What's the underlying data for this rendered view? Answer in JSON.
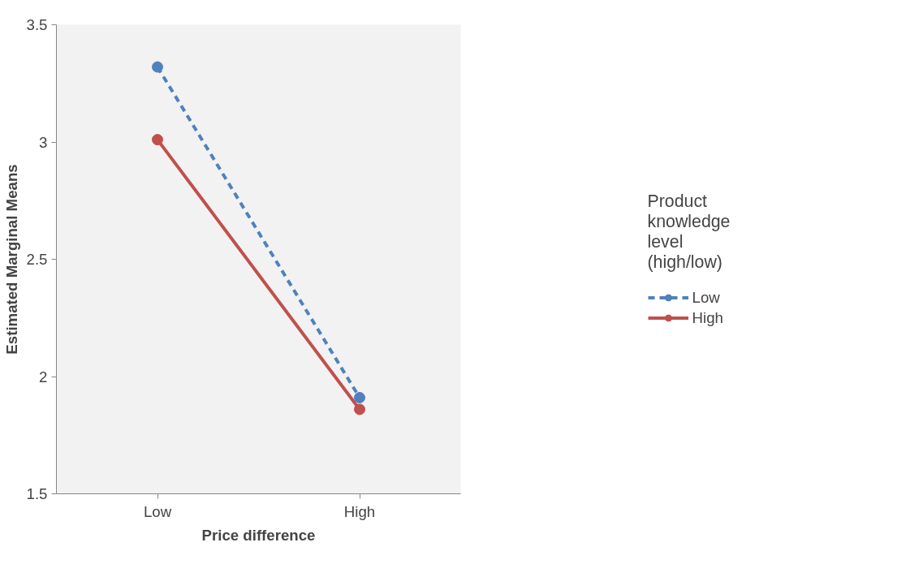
{
  "chart_data": {
    "type": "line",
    "xlabel": "Price difference",
    "ylabel": "Estimated Marginal Means",
    "legend_title": "Product knowledge level (high/low)",
    "categories": [
      "Low",
      "High"
    ],
    "series": [
      {
        "name": "Low",
        "color": "#4f81bd",
        "values": [
          3.32,
          1.91
        ],
        "line_style": "dashed"
      },
      {
        "name": "High",
        "color": "#c0504d",
        "values": [
          3.01,
          1.86
        ],
        "line_style": "solid"
      }
    ],
    "ylim": [
      1.5,
      3.5
    ],
    "yticks": [
      1.5,
      2,
      2.5,
      3,
      3.5
    ],
    "grid": false,
    "legend": "right",
    "marker": "circle"
  }
}
